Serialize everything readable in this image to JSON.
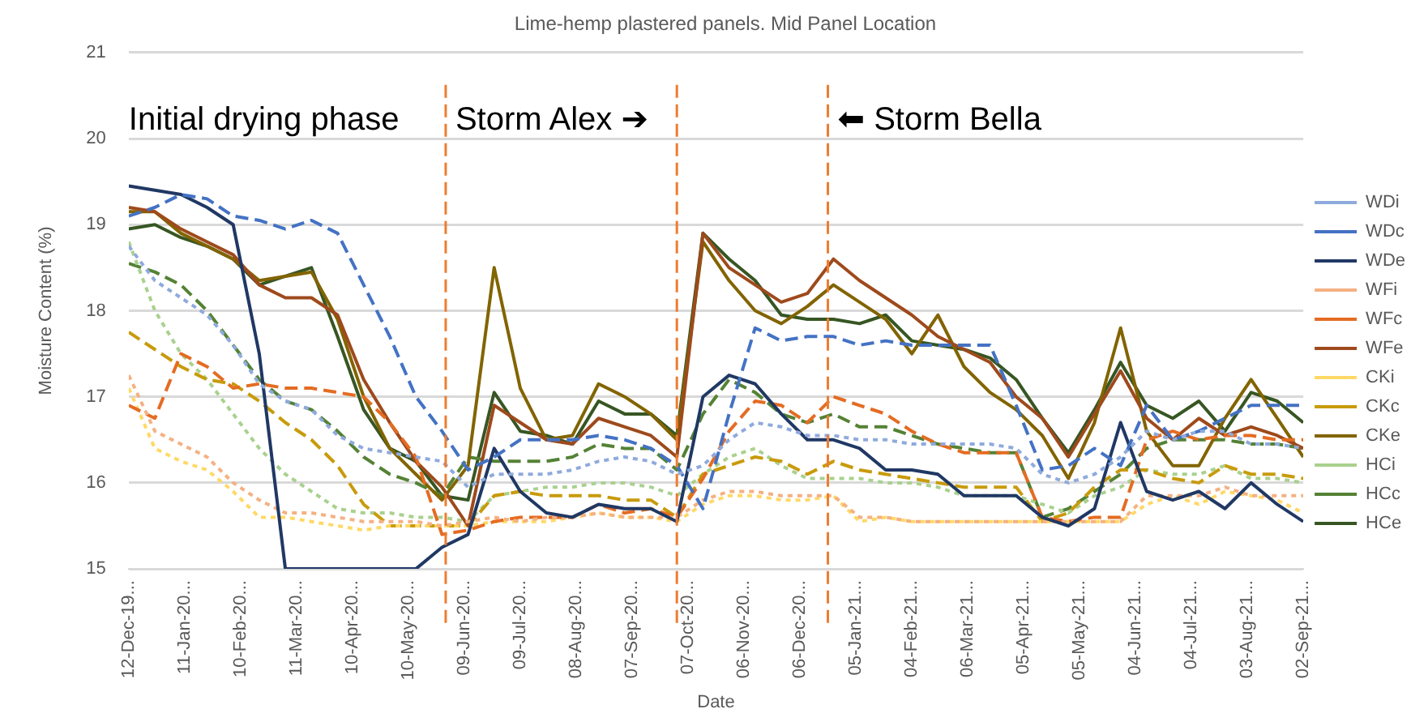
{
  "chart_data": {
    "type": "line",
    "title": "Lime-hemp plastered panels. Mid Panel Location",
    "xlabel": "Date",
    "ylabel": "Moisture Content (%)",
    "x": [
      "2019-12-12",
      "2019-12-26",
      "2020-01-09",
      "2020-01-23",
      "2020-02-06",
      "2020-02-20",
      "2020-03-05",
      "2020-03-19",
      "2020-04-02",
      "2020-04-16",
      "2020-04-30",
      "2020-05-14",
      "2020-05-28",
      "2020-06-11",
      "2020-06-25",
      "2020-07-09",
      "2020-07-23",
      "2020-08-06",
      "2020-08-20",
      "2020-09-03",
      "2020-09-17",
      "2020-10-01",
      "2020-10-15",
      "2020-10-29",
      "2020-11-12",
      "2020-11-26",
      "2020-12-10",
      "2020-12-24",
      "2021-01-07",
      "2021-01-21",
      "2021-02-04",
      "2021-02-18",
      "2021-03-04",
      "2021-03-18",
      "2021-04-01",
      "2021-04-15",
      "2021-04-29",
      "2021-05-13",
      "2021-05-27",
      "2021-06-10",
      "2021-06-24",
      "2021-07-08",
      "2021-07-22",
      "2021-08-05",
      "2021-08-19",
      "2021-09-02"
    ],
    "series": [
      {
        "name": "WDi",
        "color": "#8faadc",
        "line_style": "dotted",
        "values": [
          18.75,
          18.35,
          18.15,
          17.95,
          17.6,
          17.15,
          16.95,
          16.85,
          16.55,
          16.4,
          16.35,
          16.3,
          16.25,
          15.95,
          16.1,
          16.1,
          16.1,
          16.15,
          16.25,
          16.3,
          16.25,
          16.1,
          16.2,
          16.5,
          16.7,
          16.65,
          16.55,
          16.55,
          16.5,
          16.5,
          16.45,
          16.45,
          16.45,
          16.45,
          16.4,
          16.1,
          16.0,
          16.1,
          16.3,
          16.6,
          16.5,
          16.6,
          16.6,
          16.45,
          16.45,
          16.4
        ]
      },
      {
        "name": "WDc",
        "color": "#4472c4",
        "line_style": "dashed",
        "values": [
          19.1,
          19.2,
          19.35,
          19.3,
          19.1,
          19.05,
          18.95,
          19.05,
          18.9,
          18.3,
          17.7,
          17.0,
          16.6,
          16.15,
          16.3,
          16.5,
          16.5,
          16.5,
          16.55,
          16.5,
          16.4,
          16.2,
          15.7,
          16.8,
          17.8,
          17.65,
          17.7,
          17.7,
          17.6,
          17.65,
          17.6,
          17.6,
          17.6,
          17.6,
          16.9,
          16.15,
          16.2,
          16.4,
          16.2,
          16.9,
          16.5,
          16.6,
          16.75,
          16.9,
          16.9,
          16.9
        ]
      },
      {
        "name": "WDe",
        "color": "#203864",
        "line_style": "solid",
        "values": [
          19.45,
          19.4,
          19.35,
          19.2,
          19.0,
          17.5,
          15,
          15,
          15,
          15,
          15,
          15,
          15.25,
          15.4,
          16.4,
          15.9,
          15.65,
          15.6,
          15.75,
          15.7,
          15.7,
          15.55,
          17.0,
          17.25,
          17.15,
          16.8,
          16.5,
          16.5,
          16.4,
          16.15,
          16.15,
          16.1,
          15.85,
          15.85,
          15.85,
          15.6,
          15.5,
          15.7,
          16.7,
          15.9,
          15.8,
          15.9,
          15.7,
          16.0,
          15.75,
          15.55
        ]
      },
      {
        "name": "WFi",
        "color": "#f4b183",
        "line_style": "dotted",
        "values": [
          17.25,
          16.6,
          16.45,
          16.3,
          16.0,
          15.8,
          15.65,
          15.65,
          15.6,
          15.55,
          15.55,
          15.55,
          15.5,
          15.55,
          15.6,
          15.55,
          15.6,
          15.6,
          15.65,
          15.6,
          15.6,
          15.6,
          15.8,
          15.9,
          15.9,
          15.85,
          15.85,
          15.85,
          15.6,
          15.6,
          15.55,
          15.55,
          15.55,
          15.55,
          15.55,
          15.55,
          15.55,
          15.55,
          15.55,
          15.85,
          15.85,
          15.85,
          15.95,
          15.85,
          15.85,
          15.85
        ]
      },
      {
        "name": "WFc",
        "color": "#e46c23",
        "line_style": "dashed",
        "values": [
          16.9,
          16.75,
          17.5,
          17.35,
          17.1,
          17.15,
          17.1,
          17.1,
          17.05,
          17.0,
          16.7,
          16.3,
          15.4,
          15.45,
          15.55,
          15.6,
          15.6,
          15.6,
          15.75,
          15.65,
          15.7,
          15.6,
          16.05,
          16.6,
          16.95,
          16.9,
          16.7,
          17.0,
          16.9,
          16.8,
          16.6,
          16.45,
          16.35,
          16.35,
          16.35,
          15.6,
          15.55,
          15.6,
          15.6,
          16.5,
          16.6,
          16.5,
          16.55,
          16.55,
          16.5,
          16.5
        ]
      },
      {
        "name": "WFe",
        "color": "#9e4a1c",
        "line_style": "solid",
        "values": [
          19.2,
          19.15,
          18.95,
          18.8,
          18.65,
          18.3,
          18.15,
          18.15,
          17.95,
          17.2,
          16.7,
          16.25,
          15.95,
          15.5,
          16.9,
          16.7,
          16.5,
          16.45,
          16.75,
          16.65,
          16.55,
          16.3,
          18.9,
          18.5,
          18.3,
          18.1,
          18.2,
          18.6,
          18.35,
          18.15,
          17.95,
          17.7,
          17.55,
          17.4,
          17.0,
          16.75,
          16.3,
          16.8,
          17.3,
          16.75,
          16.5,
          16.75,
          16.55,
          16.65,
          16.55,
          16.4
        ]
      },
      {
        "name": "CKi",
        "color": "#ffd966",
        "line_style": "dotted",
        "values": [
          17.1,
          16.4,
          16.25,
          16.15,
          15.9,
          15.6,
          15.6,
          15.55,
          15.5,
          15.45,
          15.5,
          15.5,
          15.5,
          15.5,
          15.55,
          15.55,
          15.55,
          15.6,
          15.65,
          15.6,
          15.6,
          15.55,
          15.75,
          15.85,
          15.85,
          15.8,
          15.8,
          15.85,
          15.55,
          15.6,
          15.55,
          15.55,
          15.55,
          15.55,
          15.55,
          15.55,
          15.55,
          15.55,
          15.55,
          15.75,
          15.85,
          15.75,
          15.9,
          15.85,
          15.8,
          15.65
        ]
      },
      {
        "name": "CKc",
        "color": "#c89b0c",
        "line_style": "dashed",
        "values": [
          17.75,
          17.55,
          17.35,
          17.2,
          17.15,
          16.95,
          16.7,
          16.5,
          16.2,
          15.75,
          15.5,
          15.5,
          15.5,
          15.5,
          15.85,
          15.9,
          15.85,
          15.85,
          15.85,
          15.8,
          15.8,
          15.6,
          16.1,
          16.2,
          16.3,
          16.25,
          16.1,
          16.25,
          16.15,
          16.1,
          16.05,
          16.0,
          15.95,
          15.95,
          15.95,
          15.55,
          15.65,
          15.95,
          16.15,
          16.15,
          16.05,
          16.0,
          16.2,
          16.1,
          16.1,
          16.05
        ]
      },
      {
        "name": "CKe",
        "color": "#826400",
        "line_style": "solid",
        "values": [
          19.15,
          19.15,
          18.9,
          18.75,
          18.6,
          18.35,
          18.4,
          18.45,
          17.9,
          17.0,
          16.4,
          16.1,
          15.8,
          16.2,
          18.5,
          17.1,
          16.5,
          16.55,
          17.15,
          17.0,
          16.8,
          16.5,
          18.8,
          18.35,
          18.0,
          17.85,
          18.05,
          18.3,
          18.1,
          17.9,
          17.5,
          17.95,
          17.35,
          17.05,
          16.85,
          16.55,
          16.05,
          16.7,
          17.8,
          16.6,
          16.2,
          16.2,
          16.75,
          17.2,
          16.75,
          16.3
        ]
      },
      {
        "name": "HCi",
        "color": "#a9d18e",
        "line_style": "dotted",
        "values": [
          18.8,
          18.0,
          17.5,
          17.2,
          16.8,
          16.4,
          16.1,
          15.9,
          15.7,
          15.65,
          15.65,
          15.6,
          15.6,
          15.55,
          15.85,
          15.9,
          15.95,
          15.95,
          16.0,
          16.0,
          15.95,
          15.85,
          16.1,
          16.3,
          16.4,
          16.2,
          16.05,
          16.05,
          16.05,
          16.0,
          16.0,
          15.95,
          15.85,
          15.85,
          15.85,
          15.75,
          15.65,
          15.85,
          15.95,
          16.15,
          16.1,
          16.1,
          16.2,
          16.05,
          16.05,
          16.0
        ]
      },
      {
        "name": "HCc",
        "color": "#548235",
        "line_style": "dashed",
        "values": [
          18.55,
          18.45,
          18.3,
          18.0,
          17.6,
          17.2,
          16.95,
          16.85,
          16.6,
          16.3,
          16.1,
          16.0,
          15.85,
          16.3,
          16.25,
          16.25,
          16.25,
          16.3,
          16.45,
          16.4,
          16.4,
          16.15,
          16.8,
          17.2,
          17.05,
          16.8,
          16.7,
          16.8,
          16.65,
          16.65,
          16.55,
          16.45,
          16.4,
          16.35,
          16.35,
          15.6,
          15.7,
          15.9,
          16.1,
          16.4,
          16.5,
          16.5,
          16.5,
          16.45,
          16.45,
          16.4
        ]
      },
      {
        "name": "HCe",
        "color": "#375623",
        "line_style": "solid",
        "values": [
          18.95,
          19.0,
          18.85,
          18.75,
          18.6,
          18.3,
          18.4,
          18.5,
          17.7,
          16.85,
          16.4,
          16.25,
          15.85,
          15.8,
          17.05,
          16.6,
          16.55,
          16.45,
          16.95,
          16.8,
          16.8,
          16.55,
          18.9,
          18.6,
          18.35,
          17.95,
          17.9,
          17.9,
          17.85,
          17.95,
          17.65,
          17.6,
          17.55,
          17.45,
          17.2,
          16.75,
          16.35,
          16.85,
          17.4,
          16.9,
          16.75,
          16.95,
          16.6,
          17.05,
          16.95,
          16.7
        ]
      }
    ],
    "xlim": [
      "2019-12-12",
      "2021-09-02"
    ],
    "xticks": [
      {
        "value": "2019-12-12",
        "label": "12-Dec-19..."
      },
      {
        "value": "2020-01-11",
        "label": "11-Jan-20..."
      },
      {
        "value": "2020-02-10",
        "label": "10-Feb-20..."
      },
      {
        "value": "2020-03-11",
        "label": "11-Mar-20..."
      },
      {
        "value": "2020-04-10",
        "label": "10-Apr-20..."
      },
      {
        "value": "2020-05-10",
        "label": "10-May-20..."
      },
      {
        "value": "2020-06-09",
        "label": "09-Jun-20..."
      },
      {
        "value": "2020-07-09",
        "label": "09-Jul-20..."
      },
      {
        "value": "2020-08-08",
        "label": "08-Aug-20..."
      },
      {
        "value": "2020-09-07",
        "label": "07-Sep-20..."
      },
      {
        "value": "2020-10-07",
        "label": "07-Oct-20..."
      },
      {
        "value": "2020-11-06",
        "label": "06-Nov-20..."
      },
      {
        "value": "2020-12-06",
        "label": "06-Dec-20..."
      },
      {
        "value": "2021-01-05",
        "label": "05-Jan-21..."
      },
      {
        "value": "2021-02-04",
        "label": "04-Feb-21..."
      },
      {
        "value": "2021-03-06",
        "label": "06-Mar-21..."
      },
      {
        "value": "2021-04-05",
        "label": "05-Apr-21..."
      },
      {
        "value": "2021-05-05",
        "label": "05-May-21..."
      },
      {
        "value": "2021-06-04",
        "label": "04-Jun-21..."
      },
      {
        "value": "2021-07-04",
        "label": "04-Jul-21..."
      },
      {
        "value": "2021-08-03",
        "label": "03-Aug-21..."
      },
      {
        "value": "2021-09-02",
        "label": "02-Sep-21..."
      }
    ],
    "ylim": [
      15,
      21
    ],
    "yticks": [
      15,
      16,
      17,
      18,
      19,
      20,
      21
    ],
    "grid": "y",
    "legend": "right",
    "ref_lines": [
      {
        "axis": "x",
        "value": "2020-05-30",
        "color": "#ed7d31",
        "line_style": "dashed"
      },
      {
        "axis": "x",
        "value": "2020-10-01",
        "color": "#ed7d31",
        "line_style": "dashed"
      },
      {
        "axis": "x",
        "value": "2020-12-21",
        "color": "#ed7d31",
        "line_style": "dashed"
      }
    ],
    "annotations": [
      "Initial drying phase",
      "Storm Alex ➔",
      "⬅ Storm Bella"
    ]
  }
}
